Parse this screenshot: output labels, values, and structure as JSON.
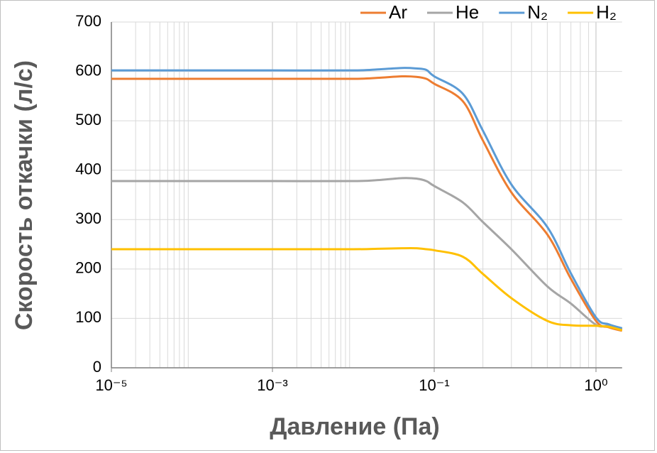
{
  "chart_data": {
    "type": "line",
    "x_label": "Давление (Па)",
    "y_label": "Скорость откачки (л/с)",
    "x": [
      1e-05,
      0.0001,
      0.001,
      0.01,
      0.02,
      0.04,
      0.06,
      0.08,
      0.1,
      0.15,
      0.2,
      0.3,
      0.5,
      0.7,
      1,
      1.2,
      1.45
    ],
    "series": [
      {
        "name": "Ar",
        "color": "#ed7d31",
        "values": [
          585,
          585,
          585,
          585,
          587,
          590,
          589,
          585,
          575,
          540,
          460,
          355,
          270,
          180,
          95,
          82,
          75
        ]
      },
      {
        "name": "He",
        "color": "#a5a5a5",
        "values": [
          378,
          378,
          378,
          378,
          380,
          384,
          383,
          378,
          368,
          335,
          295,
          240,
          165,
          130,
          87,
          85,
          78
        ]
      },
      {
        "name": "N₂",
        "color": "#5b9bd5",
        "values": [
          602,
          602,
          602,
          602,
          604,
          607,
          606,
          603,
          590,
          555,
          480,
          371,
          285,
          191,
          102,
          88,
          80
        ]
      },
      {
        "name": "H₂",
        "color": "#ffc000",
        "values": [
          240,
          240,
          240,
          240,
          241,
          242,
          242,
          240,
          238,
          225,
          190,
          141,
          95,
          86,
          85,
          83,
          76
        ]
      }
    ],
    "log_x": true,
    "xlim": [
      1e-05,
      1.45
    ],
    "xticks": [
      {
        "value": 1e-05,
        "label": "10⁻⁵"
      },
      {
        "value": 0.001,
        "label": "10⁻³"
      },
      {
        "value": 0.1,
        "label": "10⁻¹"
      },
      {
        "value": 1,
        "label": "10⁰"
      }
    ],
    "ylim": [
      0,
      700
    ],
    "yticks": [
      0,
      100,
      200,
      300,
      400,
      500,
      600,
      700
    ],
    "grid": true,
    "legend": "top-right"
  }
}
